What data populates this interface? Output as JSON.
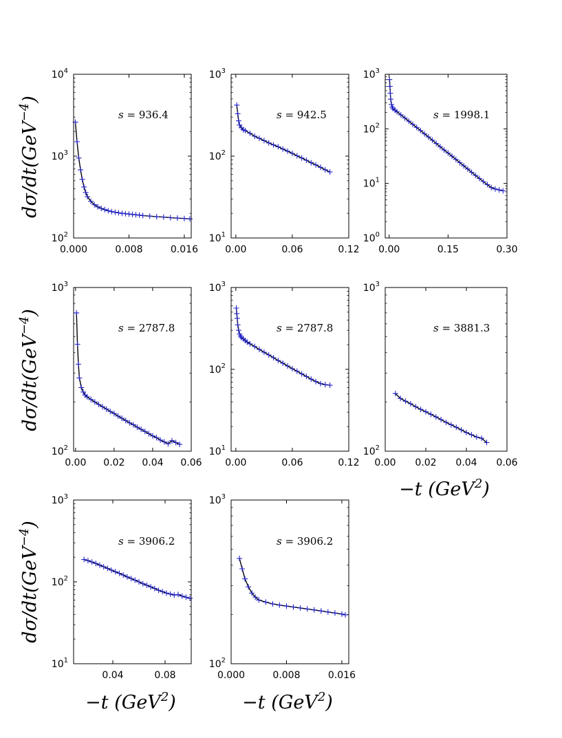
{
  "chart_data": [
    {
      "type": "scatter",
      "annotation": "s = 936.4",
      "annotation_symbol": "s",
      "annotation_value": "936.4",
      "yscale": "log",
      "ylim": [
        100,
        10000
      ],
      "xlim": [
        0.0,
        0.017
      ],
      "xticks": [
        0.0,
        0.008,
        0.016
      ],
      "xtick_labels": [
        "0.000",
        "0.008",
        "0.016"
      ],
      "yticks": [
        100,
        1000,
        10000
      ],
      "ytick_mantissa": [
        "10",
        "10",
        "10"
      ],
      "ytick_exponents": [
        "2",
        "3",
        "4"
      ],
      "points": [
        [
          0.00025,
          2600
        ],
        [
          0.0005,
          1500
        ],
        [
          0.00075,
          950
        ],
        [
          0.001,
          680
        ],
        [
          0.00125,
          520
        ],
        [
          0.0015,
          420
        ],
        [
          0.00175,
          360
        ],
        [
          0.002,
          320
        ],
        [
          0.0025,
          280
        ],
        [
          0.003,
          255
        ],
        [
          0.0035,
          240
        ],
        [
          0.004,
          230
        ],
        [
          0.0045,
          222
        ],
        [
          0.005,
          215
        ],
        [
          0.0055,
          210
        ],
        [
          0.006,
          206
        ],
        [
          0.0065,
          203
        ],
        [
          0.007,
          200
        ],
        [
          0.0075,
          198
        ],
        [
          0.008,
          196
        ],
        [
          0.0085,
          194
        ],
        [
          0.009,
          192
        ],
        [
          0.0095,
          190
        ],
        [
          0.01,
          188
        ],
        [
          0.011,
          185
        ],
        [
          0.012,
          182
        ],
        [
          0.013,
          180
        ],
        [
          0.014,
          177
        ],
        [
          0.015,
          175
        ],
        [
          0.016,
          173
        ],
        [
          0.0168,
          171
        ]
      ]
    },
    {
      "type": "scatter",
      "annotation": "s = 942.5",
      "annotation_symbol": "s",
      "annotation_value": "942.5",
      "yscale": "log",
      "ylim": [
        10,
        1000
      ],
      "xlim": [
        -0.005,
        0.12
      ],
      "xticks": [
        0.0,
        0.06,
        0.12
      ],
      "xtick_labels": [
        "0.00",
        "0.06",
        "0.12"
      ],
      "yticks": [
        10,
        100,
        1000
      ],
      "ytick_mantissa": [
        "10",
        "10",
        "10"
      ],
      "ytick_exponents": [
        "1",
        "2",
        "3"
      ],
      "points": [
        [
          0.001,
          420
        ],
        [
          0.002,
          330
        ],
        [
          0.003,
          270
        ],
        [
          0.004,
          240
        ],
        [
          0.006,
          222
        ],
        [
          0.008,
          210
        ],
        [
          0.01,
          205
        ],
        [
          0.015,
          190
        ],
        [
          0.02,
          175
        ],
        [
          0.025,
          165
        ],
        [
          0.03,
          155
        ],
        [
          0.035,
          145
        ],
        [
          0.04,
          137
        ],
        [
          0.045,
          130
        ],
        [
          0.05,
          122
        ],
        [
          0.055,
          115
        ],
        [
          0.06,
          108
        ],
        [
          0.065,
          101
        ],
        [
          0.07,
          95
        ],
        [
          0.075,
          89
        ],
        [
          0.08,
          83
        ],
        [
          0.085,
          78
        ],
        [
          0.09,
          73
        ],
        [
          0.095,
          68
        ],
        [
          0.1,
          64
        ]
      ]
    },
    {
      "type": "scatter",
      "annotation": "s = 1998.1",
      "annotation_symbol": "s",
      "annotation_value": "1998.1",
      "yscale": "log",
      "ylim": [
        1,
        1000
      ],
      "xlim": [
        -0.01,
        0.3
      ],
      "xticks": [
        0.0,
        0.15,
        0.3
      ],
      "xtick_labels": [
        "0.00",
        "0.15",
        "0.30"
      ],
      "yticks": [
        1,
        10,
        100,
        1000
      ],
      "ytick_mantissa": [
        "10",
        "10",
        "10",
        "10"
      ],
      "ytick_exponents": [
        "0",
        "1",
        "2",
        "3"
      ],
      "points": [
        [
          0.001,
          800
        ],
        [
          0.002,
          600
        ],
        [
          0.003,
          450
        ],
        [
          0.004,
          350
        ],
        [
          0.006,
          280
        ],
        [
          0.008,
          250
        ],
        [
          0.01,
          235
        ],
        [
          0.015,
          220
        ],
        [
          0.02,
          205
        ],
        [
          0.03,
          180
        ],
        [
          0.04,
          158
        ],
        [
          0.05,
          138
        ],
        [
          0.06,
          121
        ],
        [
          0.07,
          106
        ],
        [
          0.08,
          93
        ],
        [
          0.09,
          81
        ],
        [
          0.1,
          71
        ],
        [
          0.11,
          62
        ],
        [
          0.12,
          54
        ],
        [
          0.13,
          47
        ],
        [
          0.14,
          41
        ],
        [
          0.15,
          36
        ],
        [
          0.16,
          31.5
        ],
        [
          0.17,
          27.5
        ],
        [
          0.18,
          24
        ],
        [
          0.19,
          21
        ],
        [
          0.2,
          18.4
        ],
        [
          0.21,
          16
        ],
        [
          0.22,
          14
        ],
        [
          0.23,
          12.3
        ],
        [
          0.24,
          10.8
        ],
        [
          0.25,
          9.5
        ],
        [
          0.26,
          8.4
        ],
        [
          0.27,
          7.9
        ],
        [
          0.28,
          7.6
        ],
        [
          0.29,
          7.3
        ]
      ]
    },
    {
      "type": "scatter",
      "annotation": "s = 2787.8",
      "annotation_symbol": "s",
      "annotation_value": "2787.8",
      "yscale": "log",
      "ylim": [
        100,
        1000
      ],
      "xlim": [
        -0.001,
        0.06
      ],
      "xticks": [
        0.0,
        0.02,
        0.04,
        0.06
      ],
      "xtick_labels": [
        "0.00",
        "0.02",
        "0.04",
        "0.06"
      ],
      "yticks": [
        100,
        1000
      ],
      "ytick_mantissa": [
        "10",
        "10"
      ],
      "ytick_exponents": [
        "2",
        "3"
      ],
      "points": [
        [
          0.0005,
          700
        ],
        [
          0.001,
          450
        ],
        [
          0.0015,
          340
        ],
        [
          0.002,
          280
        ],
        [
          0.003,
          245
        ],
        [
          0.004,
          230
        ],
        [
          0.005,
          220
        ],
        [
          0.006,
          215
        ],
        [
          0.008,
          207
        ],
        [
          0.01,
          200
        ],
        [
          0.012,
          193
        ],
        [
          0.014,
          187
        ],
        [
          0.016,
          181
        ],
        [
          0.018,
          175
        ],
        [
          0.02,
          170
        ],
        [
          0.022,
          164
        ],
        [
          0.024,
          159
        ],
        [
          0.026,
          154
        ],
        [
          0.028,
          149
        ],
        [
          0.03,
          145
        ],
        [
          0.032,
          140
        ],
        [
          0.034,
          136
        ],
        [
          0.036,
          132
        ],
        [
          0.038,
          128
        ],
        [
          0.04,
          124
        ],
        [
          0.042,
          121
        ],
        [
          0.044,
          117
        ],
        [
          0.046,
          114
        ],
        [
          0.048,
          111
        ],
        [
          0.05,
          116
        ],
        [
          0.052,
          113
        ],
        [
          0.054,
          110
        ]
      ]
    },
    {
      "type": "scatter",
      "annotation": "s = 2787.8",
      "annotation_symbol": "s",
      "annotation_value": "2787.8",
      "yscale": "log",
      "ylim": [
        10,
        1000
      ],
      "xlim": [
        -0.005,
        0.12
      ],
      "xticks": [
        0.0,
        0.06,
        0.12
      ],
      "xtick_labels": [
        "0.00",
        "0.06",
        "0.12"
      ],
      "yticks": [
        10,
        100,
        1000
      ],
      "ytick_mantissa": [
        "10",
        "10",
        "10"
      ],
      "ytick_exponents": [
        "1",
        "2",
        "3"
      ],
      "points": [
        [
          0.0005,
          560
        ],
        [
          0.001,
          480
        ],
        [
          0.0015,
          420
        ],
        [
          0.002,
          350
        ],
        [
          0.003,
          300
        ],
        [
          0.004,
          270
        ],
        [
          0.005,
          255
        ],
        [
          0.006,
          245
        ],
        [
          0.008,
          235
        ],
        [
          0.01,
          225
        ],
        [
          0.012,
          215
        ],
        [
          0.015,
          205
        ],
        [
          0.02,
          190
        ],
        [
          0.025,
          175
        ],
        [
          0.03,
          162
        ],
        [
          0.035,
          150
        ],
        [
          0.04,
          139
        ],
        [
          0.045,
          128
        ],
        [
          0.05,
          119
        ],
        [
          0.055,
          110
        ],
        [
          0.06,
          102
        ],
        [
          0.065,
          95
        ],
        [
          0.07,
          88
        ],
        [
          0.075,
          82
        ],
        [
          0.08,
          76
        ],
        [
          0.085,
          71
        ],
        [
          0.09,
          67
        ],
        [
          0.095,
          65
        ],
        [
          0.1,
          64
        ]
      ]
    },
    {
      "type": "scatter",
      "annotation": "s = 3881.3",
      "annotation_symbol": "s",
      "annotation_value": "3881.3",
      "yscale": "log",
      "ylim": [
        100,
        1000
      ],
      "xlim": [
        0.0,
        0.06
      ],
      "xticks": [
        0.0,
        0.02,
        0.04,
        0.06
      ],
      "xtick_labels": [
        "0.00",
        "0.02",
        "0.04",
        "0.06"
      ],
      "yticks": [
        100,
        1000
      ],
      "ytick_mantissa": [
        "10",
        "10"
      ],
      "ytick_exponents": [
        "2",
        "3"
      ],
      "points": [
        [
          0.005,
          225
        ],
        [
          0.0075,
          210
        ],
        [
          0.01,
          202
        ],
        [
          0.0125,
          195
        ],
        [
          0.015,
          187
        ],
        [
          0.0175,
          180
        ],
        [
          0.02,
          174
        ],
        [
          0.0225,
          168
        ],
        [
          0.025,
          162
        ],
        [
          0.0275,
          156
        ],
        [
          0.03,
          150
        ],
        [
          0.0325,
          145
        ],
        [
          0.035,
          140
        ],
        [
          0.0375,
          135
        ],
        [
          0.04,
          130
        ],
        [
          0.0425,
          126
        ],
        [
          0.045,
          122
        ],
        [
          0.0475,
          120
        ],
        [
          0.05,
          113
        ]
      ]
    },
    {
      "type": "scatter",
      "annotation": "s = 3906.2",
      "annotation_symbol": "s",
      "annotation_value": "3906.2",
      "yscale": "log",
      "ylim": [
        10,
        1000
      ],
      "xlim": [
        0.01,
        0.1
      ],
      "xticks": [
        0.04,
        0.08
      ],
      "xtick_labels": [
        "0.04",
        "0.08"
      ],
      "yticks": [
        10,
        100,
        1000
      ],
      "ytick_mantissa": [
        "10",
        "10",
        "10"
      ],
      "ytick_exponents": [
        "1",
        "2",
        "3"
      ],
      "points": [
        [
          0.018,
          188
        ],
        [
          0.021,
          182
        ],
        [
          0.024,
          175
        ],
        [
          0.027,
          168
        ],
        [
          0.03,
          160
        ],
        [
          0.033,
          153
        ],
        [
          0.036,
          146
        ],
        [
          0.039,
          139
        ],
        [
          0.042,
          133
        ],
        [
          0.045,
          127
        ],
        [
          0.048,
          121
        ],
        [
          0.051,
          115
        ],
        [
          0.054,
          110
        ],
        [
          0.057,
          105
        ],
        [
          0.06,
          100
        ],
        [
          0.063,
          95
        ],
        [
          0.066,
          91
        ],
        [
          0.069,
          87
        ],
        [
          0.072,
          83
        ],
        [
          0.075,
          79
        ],
        [
          0.078,
          76
        ],
        [
          0.081,
          73
        ],
        [
          0.084,
          71
        ],
        [
          0.087,
          69
        ],
        [
          0.09,
          70
        ],
        [
          0.093,
          67
        ],
        [
          0.096,
          65
        ],
        [
          0.099,
          63
        ]
      ]
    },
    {
      "type": "scatter",
      "annotation": "s = 3906.2",
      "annotation_symbol": "s",
      "annotation_value": "3906.2",
      "yscale": "log",
      "ylim": [
        100,
        1000
      ],
      "xlim": [
        0.0,
        0.017
      ],
      "xticks": [
        0.0,
        0.008,
        0.016
      ],
      "xtick_labels": [
        "0.000",
        "0.008",
        "0.016"
      ],
      "yticks": [
        100,
        1000
      ],
      "ytick_mantissa": [
        "10",
        "10"
      ],
      "ytick_exponents": [
        "2",
        "3"
      ],
      "points": [
        [
          0.0012,
          440
        ],
        [
          0.0016,
          380
        ],
        [
          0.002,
          330
        ],
        [
          0.0025,
          295
        ],
        [
          0.003,
          270
        ],
        [
          0.0035,
          255
        ],
        [
          0.004,
          245
        ],
        [
          0.005,
          238
        ],
        [
          0.006,
          232
        ],
        [
          0.007,
          228
        ],
        [
          0.008,
          225
        ],
        [
          0.009,
          222
        ],
        [
          0.01,
          219
        ],
        [
          0.011,
          216
        ],
        [
          0.012,
          213
        ],
        [
          0.013,
          210
        ],
        [
          0.014,
          207
        ],
        [
          0.015,
          204
        ],
        [
          0.016,
          201
        ],
        [
          0.0165,
          199
        ]
      ]
    }
  ],
  "labels": {
    "y_axis": [
      "dσ/dt(GeV",
      "dσ/dt(GeV",
      "dσ/dt(GeV"
    ],
    "y_axis_exponent": "−4",
    "y_axis_close": ")",
    "x_axis": [
      "−t (GeV",
      "−t (GeV",
      "−t (GeV"
    ],
    "x_axis_exponent": "2",
    "x_axis_close": ")"
  },
  "style": {
    "marker_color": "#2222cc",
    "fit_color": "#000000"
  }
}
